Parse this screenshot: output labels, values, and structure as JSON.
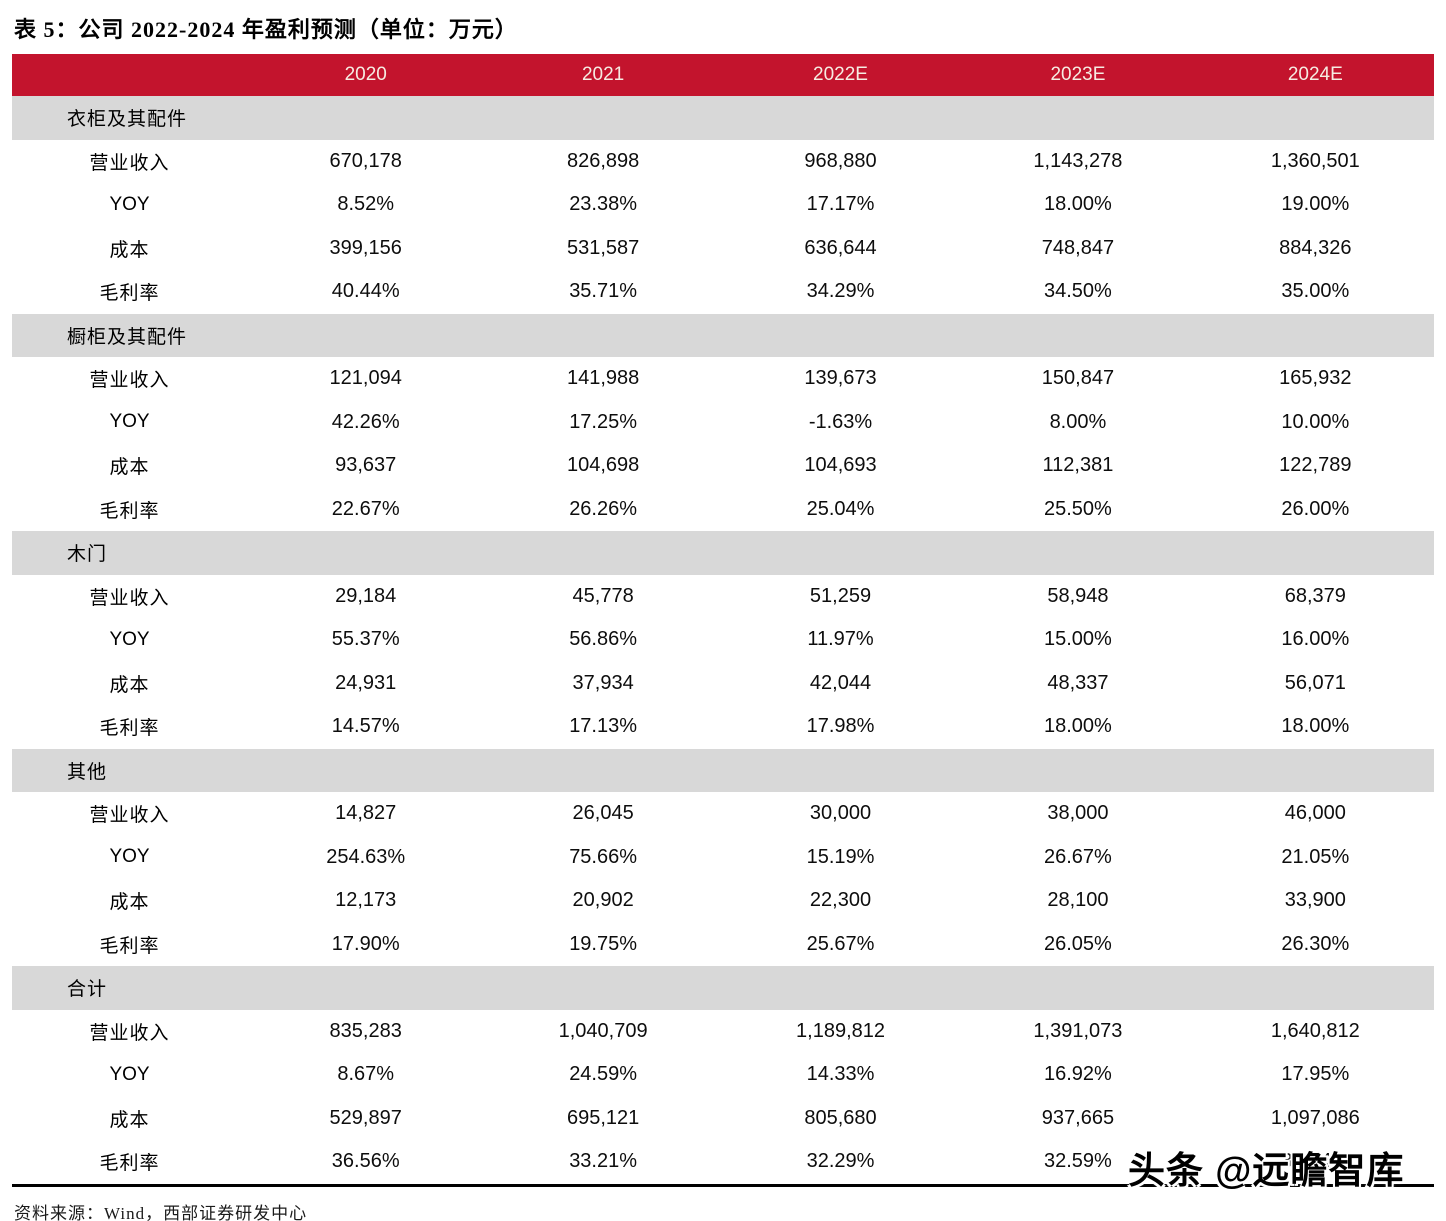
{
  "title": "表 5：公司 2022-2024 年盈利预测（单位：万元）",
  "source": "资料来源：Wind，西部证券研发中心",
  "watermark": "头条 @远瞻智库",
  "colors": {
    "header_bg": "#C3142D",
    "header_text": "#F6ECE2",
    "band_bg": "#D8D8D8"
  },
  "table": {
    "columns": [
      "",
      "2020",
      "2021",
      "2022E",
      "2023E",
      "2024E"
    ],
    "sections": [
      {
        "name": "衣柜及其配件",
        "rows": [
          {
            "label": "营业收入",
            "values": [
              "670,178",
              "826,898",
              "968,880",
              "1,143,278",
              "1,360,501"
            ]
          },
          {
            "label": "YOY",
            "values": [
              "8.52%",
              "23.38%",
              "17.17%",
              "18.00%",
              "19.00%"
            ]
          },
          {
            "label": "成本",
            "values": [
              "399,156",
              "531,587",
              "636,644",
              "748,847",
              "884,326"
            ]
          },
          {
            "label": "毛利率",
            "values": [
              "40.44%",
              "35.71%",
              "34.29%",
              "34.50%",
              "35.00%"
            ]
          }
        ]
      },
      {
        "name": "橱柜及其配件",
        "rows": [
          {
            "label": "营业收入",
            "values": [
              "121,094",
              "141,988",
              "139,673",
              "150,847",
              "165,932"
            ]
          },
          {
            "label": "YOY",
            "values": [
              "42.26%",
              "17.25%",
              "-1.63%",
              "8.00%",
              "10.00%"
            ]
          },
          {
            "label": "成本",
            "values": [
              "93,637",
              "104,698",
              "104,693",
              "112,381",
              "122,789"
            ]
          },
          {
            "label": "毛利率",
            "values": [
              "22.67%",
              "26.26%",
              "25.04%",
              "25.50%",
              "26.00%"
            ]
          }
        ]
      },
      {
        "name": "木门",
        "rows": [
          {
            "label": "营业收入",
            "values": [
              "29,184",
              "45,778",
              "51,259",
              "58,948",
              "68,379"
            ]
          },
          {
            "label": "YOY",
            "values": [
              "55.37%",
              "56.86%",
              "11.97%",
              "15.00%",
              "16.00%"
            ]
          },
          {
            "label": "成本",
            "values": [
              "24,931",
              "37,934",
              "42,044",
              "48,337",
              "56,071"
            ]
          },
          {
            "label": "毛利率",
            "values": [
              "14.57%",
              "17.13%",
              "17.98%",
              "18.00%",
              "18.00%"
            ]
          }
        ]
      },
      {
        "name": "其他",
        "rows": [
          {
            "label": "营业收入",
            "values": [
              "14,827",
              "26,045",
              "30,000",
              "38,000",
              "46,000"
            ]
          },
          {
            "label": "YOY",
            "values": [
              "254.63%",
              "75.66%",
              "15.19%",
              "26.67%",
              "21.05%"
            ]
          },
          {
            "label": "成本",
            "values": [
              "12,173",
              "20,902",
              "22,300",
              "28,100",
              "33,900"
            ]
          },
          {
            "label": "毛利率",
            "values": [
              "17.90%",
              "19.75%",
              "25.67%",
              "26.05%",
              "26.30%"
            ]
          }
        ]
      },
      {
        "name": "合计",
        "rows": [
          {
            "label": "营业收入",
            "values": [
              "835,283",
              "1,040,709",
              "1,189,812",
              "1,391,073",
              "1,640,812"
            ]
          },
          {
            "label": "YOY",
            "values": [
              "8.67%",
              "24.59%",
              "14.33%",
              "16.92%",
              "17.95%"
            ]
          },
          {
            "label": "成本",
            "values": [
              "529,897",
              "695,121",
              "805,680",
              "937,665",
              "1,097,086"
            ]
          },
          {
            "label": "毛利率",
            "values": [
              "36.56%",
              "33.21%",
              "32.29%",
              "32.59%",
              "33.14%"
            ]
          }
        ]
      }
    ]
  }
}
